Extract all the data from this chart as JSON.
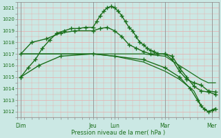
{
  "title": "",
  "xlabel": "Pression niveau de la mer( hPa )",
  "ylabel": "",
  "bg_color": "#cbe8e4",
  "grid_color_h": "#e8aaaa",
  "grid_color_v": "#e8aaaa",
  "line_color": "#1a6e1a",
  "ylim": [
    1011.5,
    1021.5
  ],
  "yticks": [
    1012,
    1013,
    1014,
    1015,
    1016,
    1017,
    1018,
    1019,
    1020,
    1021
  ],
  "xlim": [
    0,
    28
  ],
  "xtick_labels": [
    "Dim",
    "Jeu",
    "Lun",
    "Mar",
    "Mer"
  ],
  "xtick_positions": [
    0.5,
    10.5,
    13.5,
    20.5,
    27.0
  ],
  "vline_positions": [
    0.5,
    10.5,
    13.5,
    20.5,
    27.0
  ],
  "minor_xtick_step": 1,
  "series": [
    {
      "x": [
        0.5,
        1.5,
        2.5,
        3.5,
        4.5,
        5.5,
        6.5,
        7.5,
        8.5,
        9.5,
        10.5,
        11.0,
        11.5,
        12.0,
        12.5,
        13.0,
        13.5,
        14.0,
        14.5,
        15.0,
        15.5,
        16.0,
        16.5,
        17.0,
        17.5,
        18.0,
        18.5,
        19.0,
        19.5,
        20.5,
        21.5,
        22.5,
        23.5,
        24.5,
        25.5,
        26.5,
        27.5
      ],
      "y": [
        1015.0,
        1015.8,
        1016.5,
        1017.5,
        1018.2,
        1018.8,
        1019.0,
        1019.2,
        1019.2,
        1019.3,
        1019.3,
        1019.8,
        1020.3,
        1020.7,
        1021.0,
        1021.1,
        1021.0,
        1020.7,
        1020.3,
        1019.8,
        1019.3,
        1019.0,
        1018.5,
        1018.0,
        1017.8,
        1017.5,
        1017.3,
        1017.2,
        1017.0,
        1017.0,
        1016.8,
        1015.8,
        1015.0,
        1014.2,
        1013.8,
        1013.7,
        1013.5
      ],
      "marker": "+",
      "lw": 1.0,
      "ms": 4
    },
    {
      "x": [
        0.5,
        2.0,
        4.0,
        6.0,
        8.0,
        10.5,
        11.5,
        12.5,
        13.5,
        14.5,
        15.5,
        16.5,
        17.5,
        18.5,
        19.5,
        20.5,
        21.5,
        22.5,
        23.5,
        24.5,
        25.5,
        26.5,
        27.5
      ],
      "y": [
        1017.0,
        1018.0,
        1018.3,
        1018.8,
        1019.0,
        1019.0,
        1019.2,
        1019.3,
        1019.0,
        1018.5,
        1017.8,
        1017.5,
        1017.2,
        1017.0,
        1017.0,
        1017.0,
        1016.5,
        1015.5,
        1014.8,
        1014.5,
        1014.3,
        1013.8,
        1013.7
      ],
      "marker": "+",
      "lw": 1.0,
      "ms": 4
    },
    {
      "x": [
        0.5,
        5.0,
        10.5,
        13.5,
        17.5,
        20.5,
        22.5,
        24.5,
        25.5,
        26.5,
        27.5
      ],
      "y": [
        1017.0,
        1017.0,
        1017.0,
        1017.0,
        1017.0,
        1016.8,
        1016.0,
        1015.2,
        1014.8,
        1014.5,
        1014.5
      ],
      "marker": null,
      "lw": 0.9,
      "ms": 0
    },
    {
      "x": [
        0.5,
        3.0,
        6.0,
        10.5,
        13.5,
        17.5,
        20.5,
        22.5,
        24.0,
        25.0,
        25.5,
        26.0,
        26.5,
        27.0,
        27.5
      ],
      "y": [
        1015.0,
        1016.0,
        1016.8,
        1017.0,
        1016.8,
        1016.5,
        1015.8,
        1015.0,
        1014.0,
        1013.0,
        1012.5,
        1012.2,
        1012.0,
        1012.1,
        1012.2
      ],
      "marker": "+",
      "lw": 1.0,
      "ms": 4
    },
    {
      "x": [
        0.5,
        5.0,
        10.5,
        13.5,
        17.5,
        20.5,
        22.5,
        24.5,
        25.0,
        25.5,
        26.0,
        26.5,
        27.5
      ],
      "y": [
        1017.0,
        1017.0,
        1017.0,
        1016.8,
        1016.3,
        1015.5,
        1014.8,
        1013.8,
        1013.2,
        1012.5,
        1012.2,
        1012.0,
        1012.3
      ],
      "marker": null,
      "lw": 0.9,
      "ms": 0
    }
  ]
}
